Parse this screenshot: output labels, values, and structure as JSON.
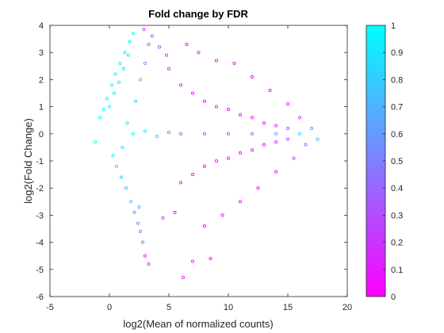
{
  "chart_data": {
    "type": "scatter",
    "title": "Fold change by FDR",
    "xlabel": "log2(Mean of normalized counts)",
    "ylabel": "log2(Fold Change)",
    "xlim": [
      -5,
      20
    ],
    "ylim": [
      -6,
      4
    ],
    "xticks": [
      "-5",
      "0",
      "5",
      "10",
      "15",
      "20"
    ],
    "yticks": [
      "4",
      "3",
      "2",
      "1",
      "0",
      "-1",
      "-2",
      "-3",
      "-4",
      "-5",
      "-6"
    ],
    "colorbar": {
      "range": [
        0,
        1
      ],
      "ticks": [
        "1",
        "0.9",
        "0.8",
        "0.7",
        "0.6",
        "0.5",
        "0.4",
        "0.3",
        "0.2",
        "0.1",
        "0"
      ],
      "colormap": "cool",
      "low_color": "#ff00ff",
      "high_color": "#00ffff"
    },
    "color_variable": "FDR",
    "marker": "open-circle",
    "grid": false,
    "series": [
      {
        "points": [
          [
            -1.2,
            -0.3,
            1.0
          ],
          [
            -0.8,
            0.6,
            0.98
          ],
          [
            -0.5,
            0.9,
            0.95
          ],
          [
            -0.2,
            1.3,
            0.97
          ],
          [
            0.2,
            1.8,
            0.96
          ],
          [
            0.5,
            2.2,
            0.94
          ],
          [
            0.9,
            2.6,
            0.92
          ],
          [
            1.3,
            3.0,
            0.9
          ],
          [
            1.7,
            3.4,
            0.88
          ],
          [
            2.0,
            3.7,
            0.9
          ],
          [
            0.0,
            1.0,
            0.95
          ],
          [
            0.4,
            1.5,
            0.93
          ],
          [
            0.8,
            1.9,
            0.9
          ],
          [
            1.2,
            2.4,
            0.88
          ],
          [
            1.6,
            2.9,
            0.85
          ],
          [
            0.3,
            -0.8,
            0.9
          ],
          [
            0.6,
            -1.2,
            0.85
          ],
          [
            1.0,
            -1.6,
            0.8
          ],
          [
            1.4,
            -2.0,
            0.75
          ],
          [
            1.8,
            -2.5,
            0.7
          ],
          [
            2.1,
            -2.9,
            0.65
          ],
          [
            2.4,
            -3.3,
            0.6
          ],
          [
            2.6,
            -3.6,
            0.55
          ],
          [
            2.8,
            -4.0,
            0.5
          ],
          [
            2.5,
            -2.7,
            0.6
          ],
          [
            1.1,
            -0.5,
            0.85
          ],
          [
            1.5,
            0.4,
            0.85
          ],
          [
            2.2,
            1.2,
            0.75
          ],
          [
            2.6,
            2.0,
            0.7
          ],
          [
            3.0,
            2.6,
            0.5
          ],
          [
            3.3,
            3.3,
            0.4
          ],
          [
            3.6,
            3.6,
            0.35
          ],
          [
            4.2,
            3.2,
            0.25
          ],
          [
            2.9,
            3.85,
            0.2
          ],
          [
            4.8,
            2.9,
            0.2
          ],
          [
            3.0,
            -4.5,
            0.1
          ],
          [
            3.3,
            -4.8,
            0.1
          ],
          [
            6.2,
            -5.3,
            0.08
          ],
          [
            7.0,
            -4.7,
            0.1
          ],
          [
            8.5,
            -4.6,
            0.05
          ],
          [
            6.5,
            3.3,
            0.1
          ],
          [
            7.5,
            3.0,
            0.1
          ],
          [
            9.0,
            2.7,
            0.05
          ],
          [
            10.5,
            2.6,
            0.05
          ],
          [
            12.0,
            2.1,
            0.03
          ],
          [
            13.5,
            1.6,
            0.05
          ],
          [
            15.0,
            1.1,
            0.1
          ],
          [
            16.0,
            0.6,
            0.2
          ],
          [
            17.0,
            0.2,
            0.6
          ],
          [
            17.5,
            -0.2,
            0.7
          ],
          [
            16.5,
            -0.4,
            0.5
          ],
          [
            15.5,
            -0.9,
            0.2
          ],
          [
            14.0,
            -1.4,
            0.05
          ],
          [
            12.5,
            -2.0,
            0.03
          ],
          [
            11.0,
            -2.5,
            0.03
          ],
          [
            9.5,
            -3.0,
            0.05
          ],
          [
            8.0,
            -3.4,
            0.05
          ],
          [
            5.5,
            -2.9,
            0.1
          ],
          [
            4.5,
            -3.1,
            0.2
          ],
          [
            5.0,
            2.4,
            0.15
          ],
          [
            6.0,
            1.8,
            0.1
          ],
          [
            7.0,
            1.5,
            0.05
          ],
          [
            8.0,
            1.2,
            0.04
          ],
          [
            9.0,
            1.0,
            0.03
          ],
          [
            10.0,
            0.9,
            0.03
          ],
          [
            11.0,
            0.7,
            0.03
          ],
          [
            12.0,
            0.6,
            0.04
          ],
          [
            13.0,
            0.4,
            0.05
          ],
          [
            14.0,
            0.3,
            0.1
          ],
          [
            15.0,
            0.2,
            0.3
          ],
          [
            6.0,
            -1.8,
            0.1
          ],
          [
            7.0,
            -1.5,
            0.05
          ],
          [
            8.0,
            -1.2,
            0.04
          ],
          [
            9.0,
            -1.0,
            0.03
          ],
          [
            10.0,
            -0.9,
            0.03
          ],
          [
            11.0,
            -0.7,
            0.03
          ],
          [
            12.0,
            -0.6,
            0.04
          ],
          [
            13.0,
            -0.4,
            0.05
          ],
          [
            14.0,
            -0.3,
            0.1
          ],
          [
            15.0,
            -0.2,
            0.3
          ],
          [
            2.0,
            0.0,
            0.95
          ],
          [
            3.0,
            0.1,
            0.9
          ],
          [
            4.0,
            -0.1,
            0.8
          ],
          [
            5.0,
            0.05,
            0.6
          ],
          [
            6.0,
            0.0,
            0.4
          ],
          [
            8.0,
            0.0,
            0.3
          ],
          [
            10.0,
            0.0,
            0.3
          ],
          [
            12.0,
            0.0,
            0.4
          ],
          [
            14.0,
            0.0,
            0.6
          ],
          [
            16.0,
            0.0,
            0.8
          ]
        ]
      }
    ]
  }
}
